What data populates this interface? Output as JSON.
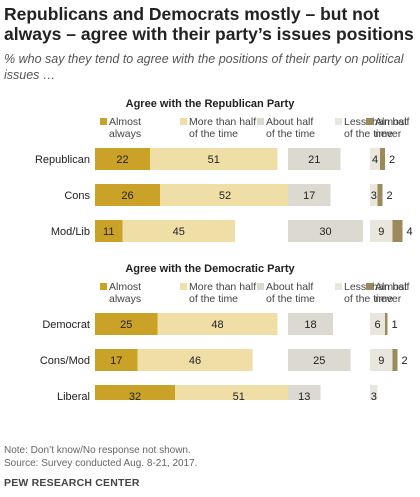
{
  "title": "Republicans and Democrats mostly – but not always – agree with their party’s issues positions",
  "subtitle": "% who say they tend to agree with the positions of their party on political issues …",
  "legend": [
    {
      "lines": [
        "Almost",
        "always"
      ],
      "color": "#c9a227"
    },
    {
      "lines": [
        "More than half",
        "of the time"
      ],
      "color": "#efdfa6"
    },
    {
      "lines": [
        "About half",
        "of the time"
      ],
      "color": "#dcdad0"
    },
    {
      "lines": [
        "Less than half",
        "of the time"
      ],
      "color": "#e8e6dd"
    },
    {
      "lines": [
        "Almost",
        "never"
      ],
      "color": "#9b8a5c"
    }
  ],
  "chart_data": [
    {
      "type": "bar",
      "title": "Agree with the Republican Party",
      "categories": [
        "Republican",
        "Cons",
        "Mod/Lib"
      ],
      "series": [
        {
          "name": "Almost always",
          "values": [
            22,
            26,
            11
          ]
        },
        {
          "name": "More than half of the time",
          "values": [
            51,
            52,
            45
          ]
        },
        {
          "name": "About half of the time",
          "values": [
            21,
            17,
            30
          ]
        },
        {
          "name": "Less than half of the time",
          "values": [
            4,
            3,
            9
          ]
        },
        {
          "name": "Almost never",
          "values": [
            2,
            2,
            4
          ]
        }
      ]
    },
    {
      "type": "bar",
      "title": "Agree with the Democratic Party",
      "categories": [
        "Democrat",
        "Cons/Mod",
        "Liberal"
      ],
      "series": [
        {
          "name": "Almost always",
          "values": [
            25,
            17,
            32
          ]
        },
        {
          "name": "More than half of the time",
          "values": [
            48,
            46,
            51
          ]
        },
        {
          "name": "About half of the time",
          "values": [
            18,
            25,
            13
          ]
        },
        {
          "name": "Less than half of the time",
          "values": [
            6,
            9,
            3
          ]
        },
        {
          "name": "Almost never",
          "values": [
            1,
            2,
            null
          ]
        }
      ]
    }
  ],
  "notes": [
    "Note: Don’t know/No response not shown.",
    "Source: Survey conducted Aug. 8-21, 2017."
  ],
  "source": "PEW RESEARCH CENTER"
}
